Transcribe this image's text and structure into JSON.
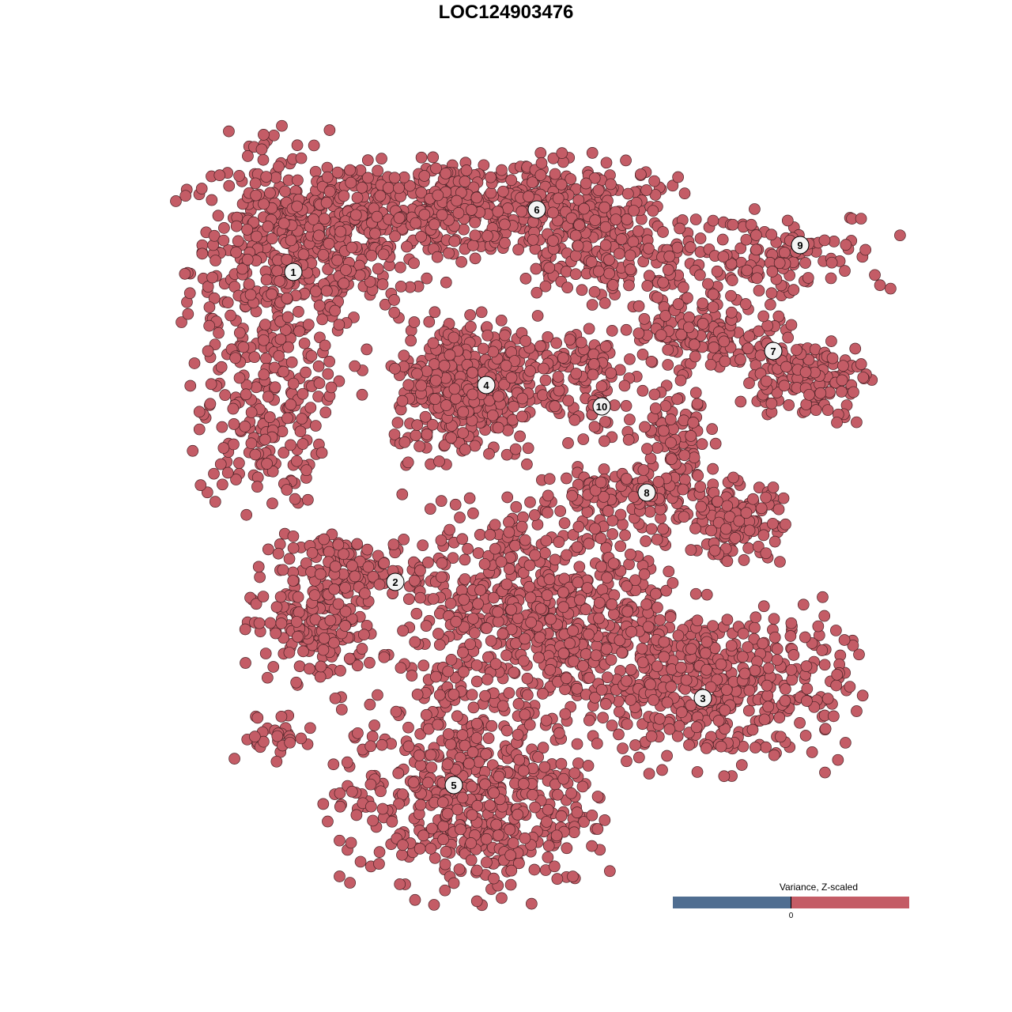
{
  "chart_data": {
    "type": "scatter",
    "title": "LOC124903476",
    "xlabel": "",
    "ylabel": "",
    "xlim": [
      -45,
      52
    ],
    "ylim": [
      -46,
      46
    ],
    "grid": false,
    "point_color": "#c45c66",
    "point_stroke": "#4a2226",
    "clusters": [
      {
        "label": "1",
        "label_pos": [
          -26.9,
          29.6
        ],
        "blobs": [
          [
            -28,
            30,
            6,
            8,
            420
          ],
          [
            -19,
            35,
            8,
            4,
            260
          ],
          [
            -31,
            10,
            4,
            5,
            150
          ]
        ]
      },
      {
        "label": "2",
        "label_pos": [
          -14,
          -9.6
        ],
        "blobs": [
          [
            -24,
            -16,
            4,
            3,
            160
          ],
          [
            -20,
            -8,
            5,
            2,
            130
          ]
        ]
      },
      {
        "label": "3",
        "label_pos": [
          24.9,
          -24.3
        ],
        "blobs": [
          [
            27,
            -23,
            8,
            5,
            420
          ]
        ]
      },
      {
        "label": "4",
        "label_pos": [
          -2.5,
          15.3
        ],
        "blobs": [
          [
            -5,
            15,
            4.5,
            4.5,
            360
          ]
        ]
      },
      {
        "label": "5",
        "label_pos": [
          -6.6,
          -35.3
        ],
        "blobs": [
          [
            -5,
            -37,
            8,
            6,
            520
          ],
          [
            5,
            -14,
            9,
            7,
            720
          ],
          [
            -30,
            -29,
            3,
            1.5,
            30
          ]
        ]
      },
      {
        "label": "6",
        "label_pos": [
          3.9,
          37.5
        ],
        "blobs": [
          [
            0,
            38,
            10,
            3,
            420
          ],
          [
            13,
            32,
            6,
            3,
            160
          ]
        ]
      },
      {
        "label": "7",
        "label_pos": [
          33.8,
          19.6
        ],
        "blobs": [
          [
            26,
            22,
            5,
            2.5,
            150
          ],
          [
            38,
            16,
            4,
            2.5,
            130
          ]
        ]
      },
      {
        "label": "8",
        "label_pos": [
          17.8,
          1.7
        ],
        "blobs": [
          [
            21,
            6,
            2.5,
            5,
            120
          ],
          [
            29,
            -2,
            3,
            2.5,
            130
          ],
          [
            14,
            2,
            5,
            1.5,
            80
          ]
        ]
      },
      {
        "label": "9",
        "label_pos": [
          37.2,
          33
        ],
        "blobs": [
          [
            33,
            32,
            8,
            2.5,
            130
          ]
        ]
      },
      {
        "label": "10",
        "label_pos": [
          12.1,
          12.6
        ],
        "blobs": [
          [
            11,
            14,
            3,
            4,
            80
          ],
          [
            6,
            19,
            4,
            1.5,
            60
          ]
        ]
      }
    ],
    "legend": {
      "title": "Variance, Z-scaled",
      "tick_label": "0",
      "low_color": "#506e91",
      "high_color": "#c45c66",
      "placement": "bottom-right"
    }
  }
}
